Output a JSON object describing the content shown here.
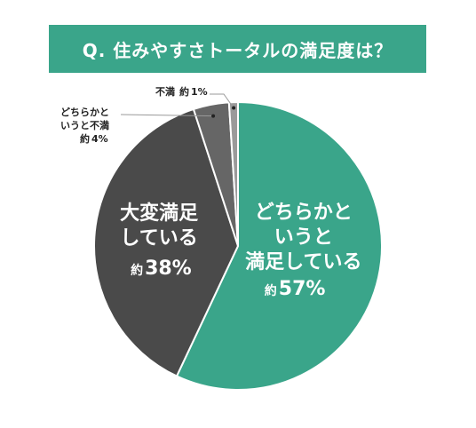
{
  "title": "Q. 住みやすさトータルの満足度は？",
  "chart_data": {
    "type": "pie",
    "title": "Q. 住みやすさトータルの満足度は？",
    "slices": [
      {
        "lines": [
          "どちらかと",
          "いうと",
          "満足している"
        ],
        "prefix": "約",
        "pct": "57%",
        "value": 57,
        "color": "#3aa58a"
      },
      {
        "lines": [
          "大変満足",
          "している"
        ],
        "prefix": "約",
        "pct": "38%",
        "value": 38,
        "color": "#4a4a4a"
      },
      {
        "lines": [
          "どちらかと",
          "いうと不満"
        ],
        "prefix": "約",
        "pct": "4%",
        "value": 4,
        "color": "#666666"
      },
      {
        "lines": [
          "不満"
        ],
        "prefix": "約",
        "pct": "1%",
        "value": 1,
        "color": "#9a9a9a"
      }
    ]
  }
}
